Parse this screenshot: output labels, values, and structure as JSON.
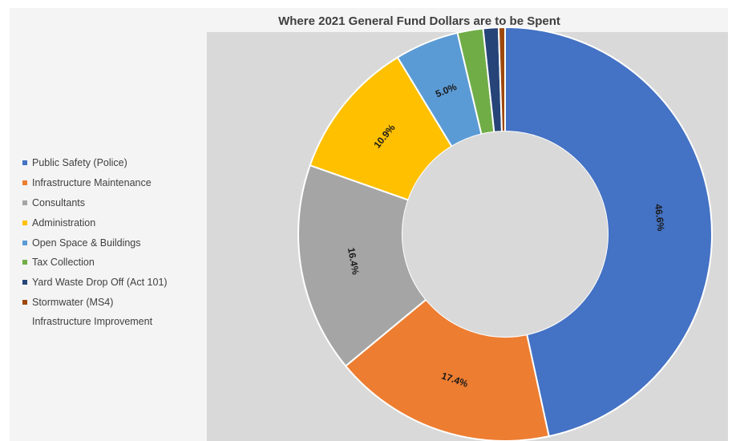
{
  "chart_data": {
    "type": "pie",
    "subtype": "donut",
    "title": "Where 2021 General Fund Dollars are to be Spent",
    "categories": [
      "Public Safety (Police)",
      "Infrastructure Maintenance",
      "Consultants",
      "Administration",
      "Open Space & Buildings",
      "Tax Collection",
      "Yard Waste Drop Off (Act 101)",
      "Stormwater (MS4)"
    ],
    "values": [
      46.6,
      17.4,
      16.4,
      10.9,
      5.0,
      2.0,
      1.2,
      0.5
    ],
    "labels": [
      "46.6%",
      "17.4%",
      "16.4%",
      "10.9%",
      "5.0%",
      "",
      "",
      ""
    ],
    "colors": [
      "#4472c4",
      "#ed7d31",
      "#a5a5a5",
      "#ffc000",
      "#5b9bd5",
      "#70ad47",
      "#264478",
      "#9e480e"
    ],
    "legend_extra_line": "Infrastructure Improvement",
    "legend_position": "left"
  }
}
